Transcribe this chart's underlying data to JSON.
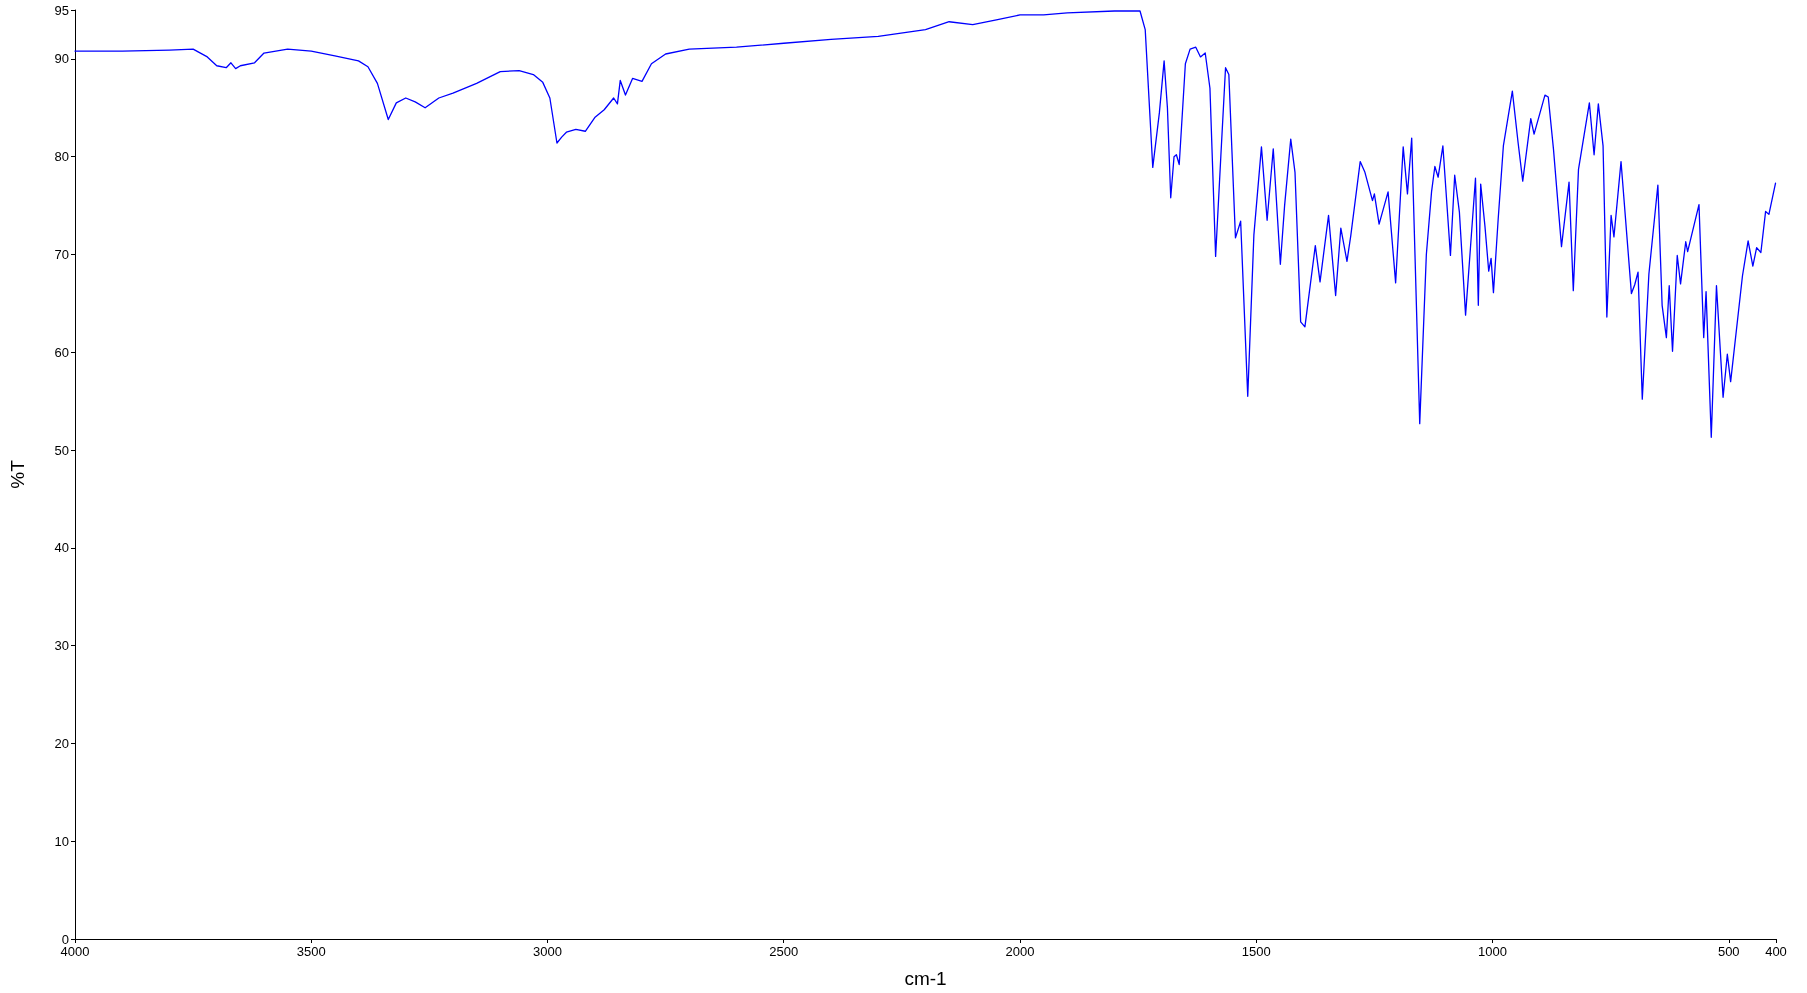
{
  "chart_data": {
    "type": "line",
    "xlabel": "cm-1",
    "ylabel": "%T",
    "xlim": [
      4000,
      400
    ],
    "ylim": [
      0,
      95
    ],
    "xticks": [
      4000,
      3500,
      3000,
      2500,
      2000,
      1500,
      1000,
      500,
      400
    ],
    "yticks": [
      0,
      10,
      20,
      30,
      40,
      50,
      60,
      70,
      80,
      90,
      95
    ],
    "grid": false,
    "marker": "none",
    "line_style": "solid",
    "series": [
      {
        "color": "#0000ff",
        "x": [
          4000,
          3900,
          3800,
          3750,
          3720,
          3700,
          3680,
          3670,
          3660,
          3650,
          3620,
          3600,
          3550,
          3500,
          3450,
          3400,
          3380,
          3360,
          3337,
          3320,
          3300,
          3280,
          3259,
          3230,
          3200,
          3150,
          3100,
          3060,
          3030,
          3010,
          2995,
          2980,
          2970,
          2960,
          2940,
          2920,
          2900,
          2880,
          2860,
          2852,
          2846,
          2835,
          2820,
          2800,
          2780,
          2750,
          2700,
          2600,
          2500,
          2400,
          2300,
          2200,
          2150,
          2100,
          2050,
          2000,
          1950,
          1900,
          1800,
          1746,
          1735,
          1719,
          1705,
          1695,
          1688,
          1681,
          1674,
          1669,
          1663,
          1650,
          1640,
          1628,
          1618,
          1608,
          1598,
          1586,
          1575,
          1565,
          1558,
          1544,
          1533,
          1518,
          1505,
          1489,
          1477,
          1464,
          1449,
          1440,
          1427,
          1418,
          1406,
          1397,
          1375,
          1365,
          1347,
          1332,
          1321,
          1308,
          1300,
          1280,
          1270,
          1254,
          1250,
          1240,
          1221,
          1205,
          1189,
          1180,
          1171,
          1154,
          1140,
          1129,
          1122,
          1115,
          1105,
          1089,
          1080,
          1070,
          1057,
          1036,
          1030,
          1025,
          1016,
          1008,
          1003,
          998,
          988,
          977,
          958,
          946,
          936,
          919,
          912,
          889,
          882,
          871,
          854,
          838,
          829,
          818,
          795,
          785,
          776,
          766,
          758,
          749,
          743,
          728,
          714,
          706,
          699,
          692,
          683,
          669,
          650,
          641,
          632,
          626,
          619,
          609,
          602,
          591,
          587,
          563,
          553,
          548,
          537,
          526,
          512,
          503,
          496,
          471,
          459,
          449,
          441,
          432,
          422,
          415,
          401
        ],
        "values": [
          90.8,
          90.8,
          90.9,
          91.0,
          90.2,
          89.3,
          89.1,
          89.6,
          89.0,
          89.3,
          89.6,
          90.6,
          91.0,
          90.8,
          90.3,
          89.8,
          89.2,
          87.5,
          83.8,
          85.5,
          86.0,
          85.6,
          85.0,
          86.0,
          86.5,
          87.5,
          88.7,
          88.8,
          88.4,
          87.6,
          86.0,
          81.4,
          82.0,
          82.5,
          82.8,
          82.6,
          84.0,
          84.8,
          86.0,
          85.4,
          87.8,
          86.3,
          88.0,
          87.7,
          89.5,
          90.5,
          91.0,
          91.2,
          91.6,
          92.0,
          92.3,
          93.0,
          93.8,
          93.5,
          94.0,
          94.5,
          94.5,
          94.7,
          94.9,
          94.9,
          93.0,
          78.9,
          84.5,
          89.8,
          85.0,
          75.8,
          80.0,
          80.2,
          79.2,
          89.5,
          91.0,
          91.2,
          90.2,
          90.6,
          87.0,
          69.8,
          80.0,
          89.1,
          88.4,
          71.7,
          73.4,
          55.5,
          72.0,
          81.0,
          73.5,
          80.8,
          69.0,
          75.0,
          81.8,
          78.4,
          63.1,
          62.6,
          70.9,
          67.2,
          74.0,
          65.8,
          72.7,
          69.3,
          71.9,
          79.5,
          78.4,
          75.5,
          76.2,
          73.1,
          76.4,
          67.1,
          81.0,
          76.2,
          81.9,
          52.7,
          70.0,
          76.4,
          79.0,
          77.9,
          81.1,
          69.9,
          78.1,
          74.3,
          63.8,
          77.8,
          64.8,
          77.2,
          72.9,
          68.3,
          69.6,
          66.1,
          73.6,
          81.1,
          86.7,
          81.5,
          77.5,
          83.9,
          82.3,
          86.3,
          86.1,
          80.8,
          70.8,
          77.4,
          66.3,
          78.7,
          85.5,
          80.2,
          85.4,
          81.1,
          63.6,
          74.0,
          71.8,
          79.5,
          70.9,
          66.0,
          66.9,
          68.2,
          55.2,
          68.0,
          77.1,
          64.8,
          61.5,
          66.8,
          60.1,
          69.9,
          67.0,
          71.3,
          70.3,
          75.1,
          61.5,
          66.2,
          51.3,
          66.8,
          55.4,
          59.8,
          57.0,
          67.8,
          71.4,
          68.8,
          70.7,
          70.2,
          74.4,
          74.1,
          77.3
        ]
      }
    ]
  }
}
